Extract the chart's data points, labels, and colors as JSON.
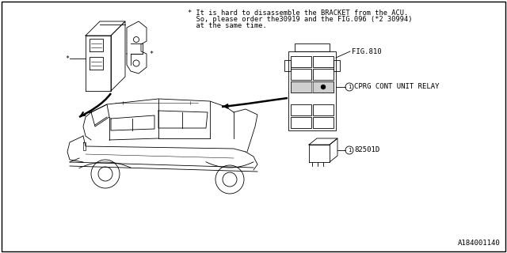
{
  "bg_color": "#ffffff",
  "border_color": "#000000",
  "title_note_line1": "* It is hard to disassemble the BRACKET from the ACU.",
  "title_note_line2": "  So, please order the30919 and the FIG.096 (*2 30994)",
  "title_note_line3": "  at the same time.",
  "fig_label": "FIG.810",
  "relay_label": "CPRG CONT UNIT RELAY",
  "part_num": "82501D",
  "ref_mark": "*",
  "diagram_id": "A184001140",
  "font_size_note": 6.2,
  "font_size_label": 6.5,
  "font_size_id": 6.5,
  "line_color": "#000000",
  "lw": 0.6
}
